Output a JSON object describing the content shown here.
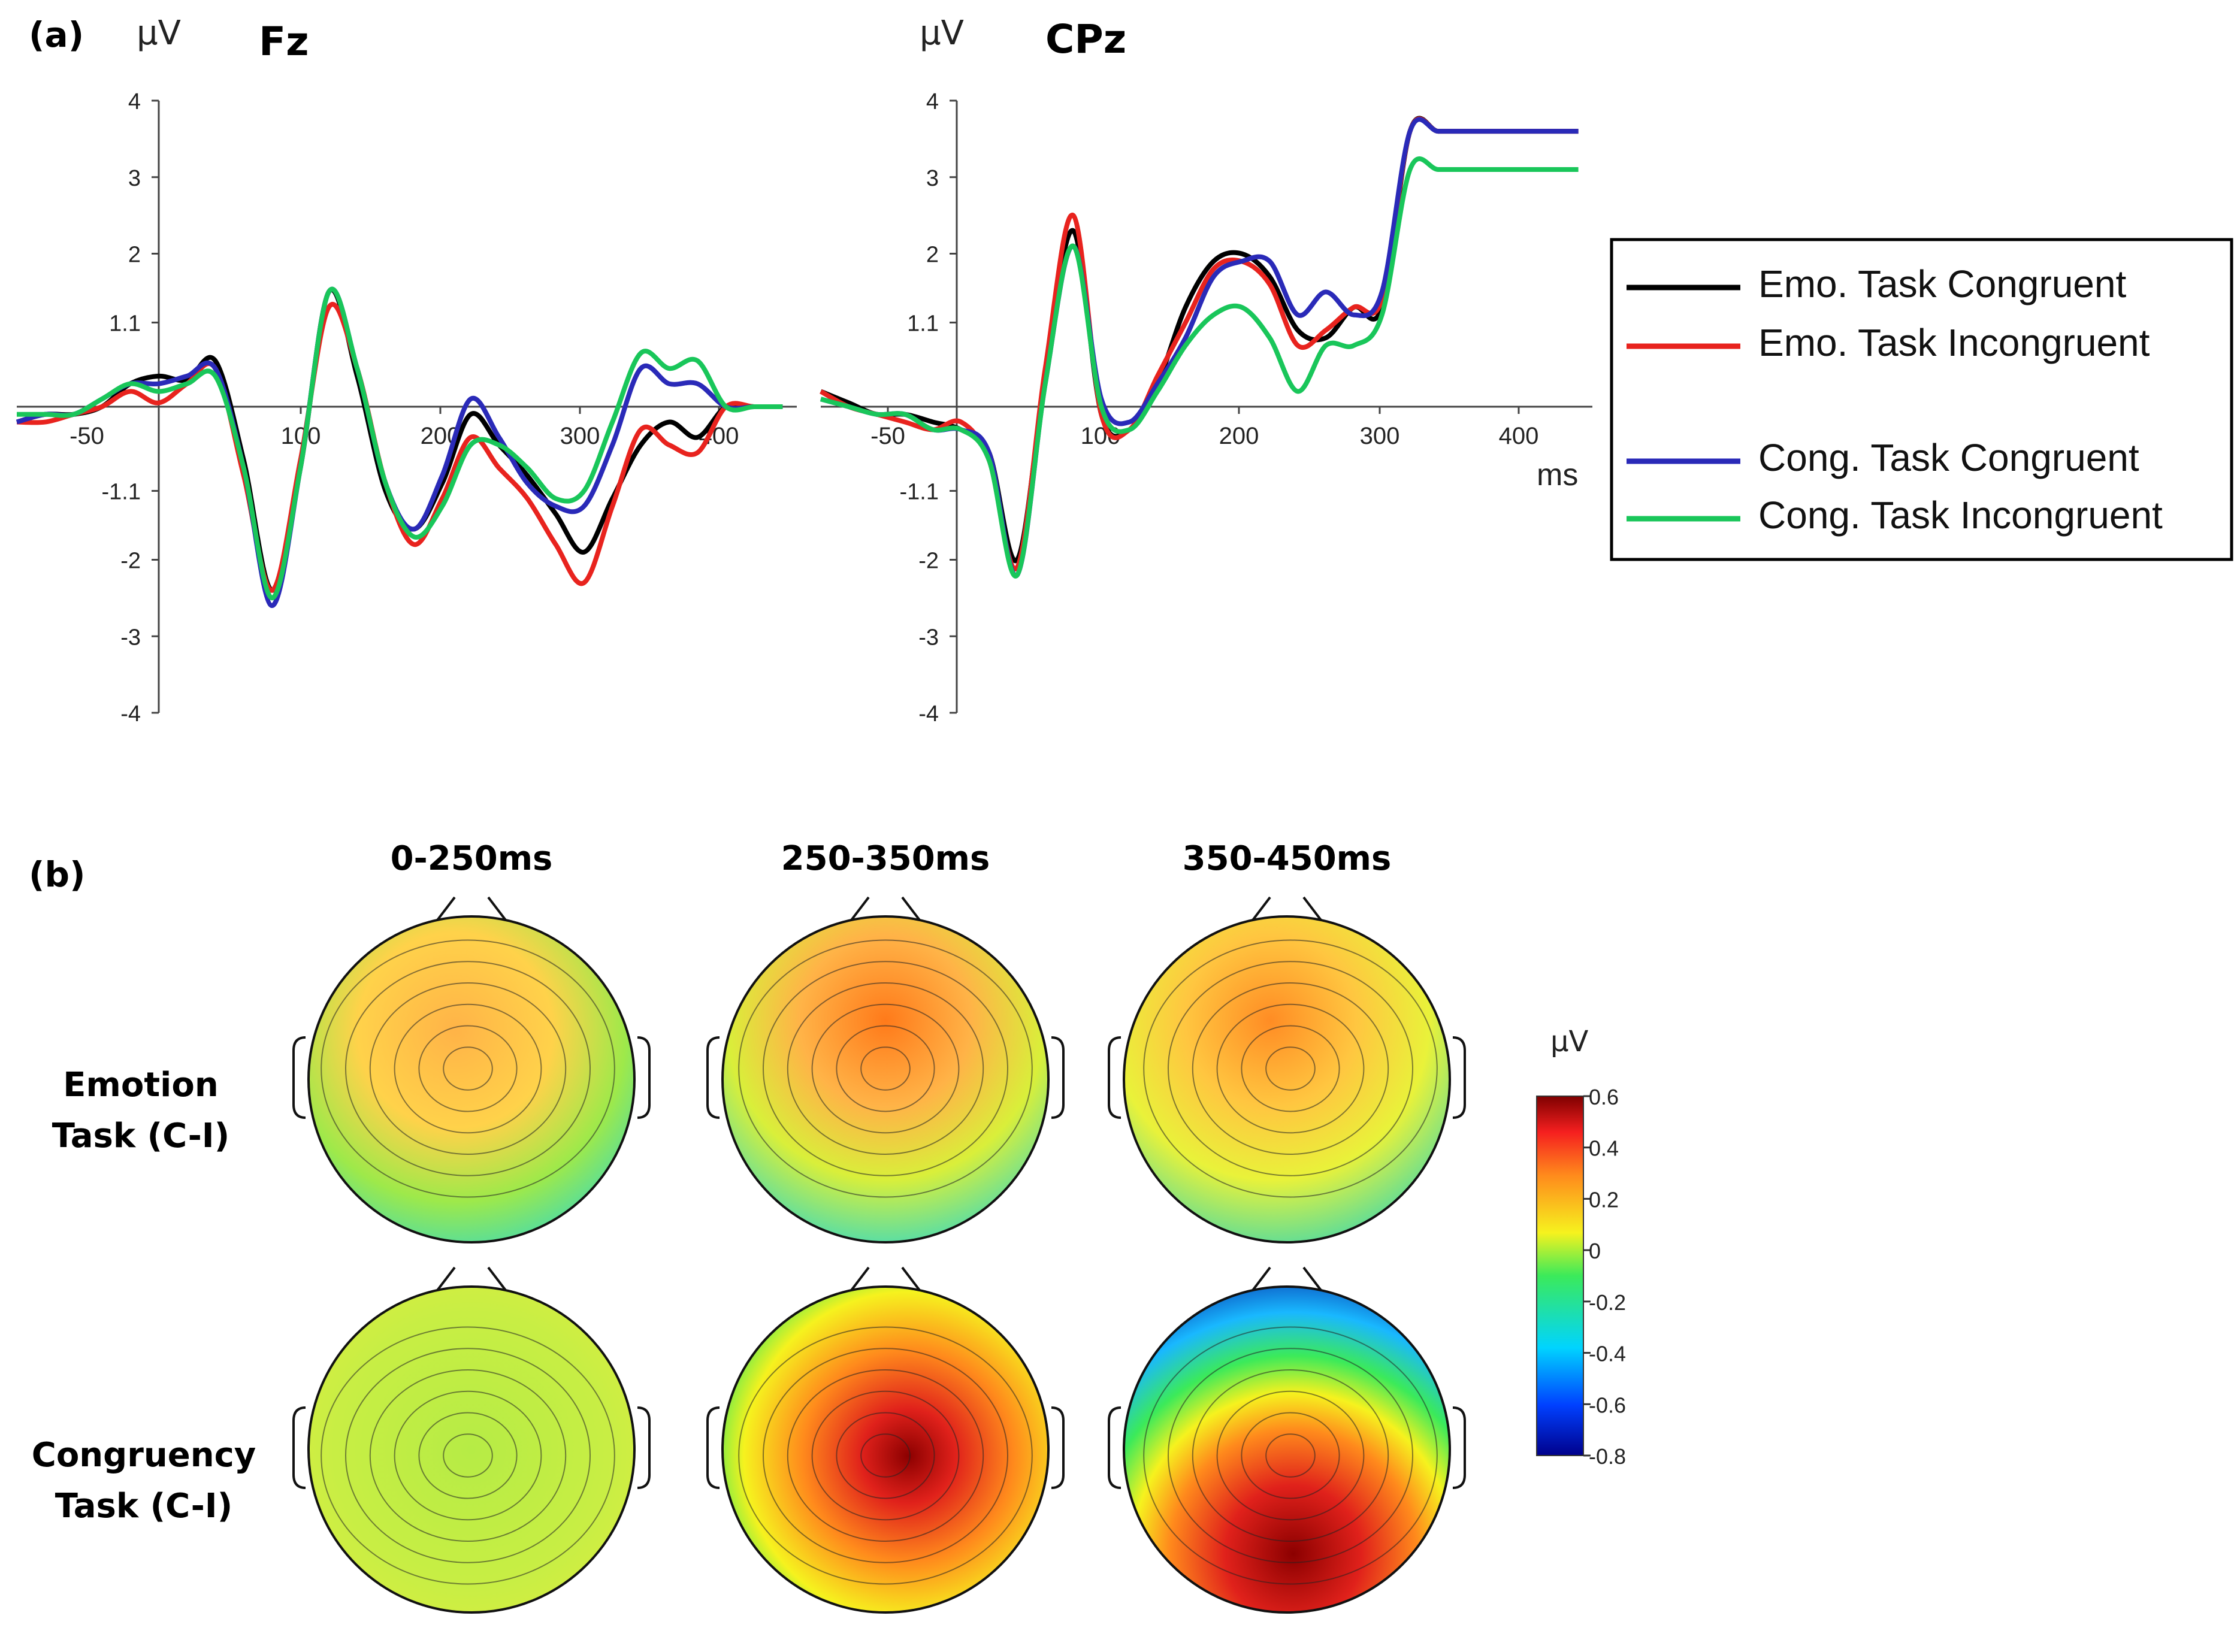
{
  "figure": {
    "panel_a_label": "(a)",
    "panel_b_label": "(b)"
  },
  "legend": {
    "entries": [
      {
        "label": "Emo. Task Congruent",
        "color": "#000000"
      },
      {
        "label": "Emo. Task Incongruent",
        "color": "#e8231e"
      },
      {
        "label": "Cong. Task Congruent",
        "color": "#2a2ab8"
      },
      {
        "label": "Cong. Task Incongruent",
        "color": "#19c65a"
      }
    ]
  },
  "chart_data": [
    {
      "type": "line",
      "title": "Fz",
      "ylabel": "μV",
      "xlabel": "",
      "xlim": [
        -100,
        450
      ],
      "ylim": [
        -4,
        4
      ],
      "x_ticks": [
        "-50",
        "100",
        "200",
        "300",
        "400"
      ],
      "y_ticks": [
        "4",
        "3",
        "2",
        "1.1",
        "-1.1",
        "-2",
        "-3",
        "-4"
      ],
      "x": [
        -100,
        -80,
        -60,
        -40,
        -20,
        0,
        20,
        40,
        60,
        80,
        100,
        120,
        140,
        160,
        180,
        200,
        220,
        240,
        260,
        280,
        300,
        320,
        340,
        360,
        380,
        400,
        420,
        440
      ],
      "series": [
        {
          "name": "Emo. Task Congruent",
          "color": "#000000",
          "values": [
            -0.2,
            -0.1,
            -0.1,
            0,
            0.3,
            0.4,
            0.35,
            0.6,
            -0.7,
            -2.4,
            -0.8,
            1.5,
            0.4,
            -1.1,
            -1.6,
            -1.0,
            -0.1,
            -0.5,
            -0.9,
            -1.4,
            -1.9,
            -1.2,
            -0.5,
            -0.2,
            -0.4,
            0,
            0,
            0
          ]
        },
        {
          "name": "Emo. Task Incongruent",
          "color": "#e8231e",
          "values": [
            -0.2,
            -0.2,
            -0.1,
            0,
            0.2,
            0.05,
            0.3,
            0.5,
            -0.9,
            -2.4,
            -0.7,
            1.3,
            0.5,
            -1.0,
            -1.8,
            -1.2,
            -0.4,
            -0.8,
            -1.2,
            -1.8,
            -2.3,
            -1.3,
            -0.3,
            -0.5,
            -0.6,
            0,
            0,
            0
          ]
        },
        {
          "name": "Cong. Task Congruent",
          "color": "#2a2ab8",
          "values": [
            -0.2,
            -0.1,
            -0.1,
            0.1,
            0.3,
            0.3,
            0.4,
            0.5,
            -0.8,
            -2.6,
            -0.8,
            1.5,
            0.5,
            -1.0,
            -1.6,
            -0.9,
            0.1,
            -0.4,
            -1.0,
            -1.3,
            -1.3,
            -0.5,
            0.5,
            0.3,
            0.3,
            0,
            0,
            0
          ]
        },
        {
          "name": "Cong. Task Incongruent",
          "color": "#19c65a",
          "values": [
            -0.1,
            -0.1,
            -0.1,
            0.1,
            0.3,
            0.2,
            0.3,
            0.4,
            -0.8,
            -2.5,
            -0.8,
            1.5,
            0.5,
            -1.0,
            -1.7,
            -1.3,
            -0.5,
            -0.5,
            -0.8,
            -1.2,
            -1.1,
            -0.2,
            0.7,
            0.5,
            0.6,
            0,
            0,
            0
          ]
        }
      ]
    },
    {
      "type": "line",
      "title": "CPz",
      "ylabel": "μV",
      "xlabel": "ms",
      "xlim": [
        -100,
        450
      ],
      "ylim": [
        -4,
        4
      ],
      "x_ticks": [
        "-50",
        "100",
        "200",
        "300",
        "400"
      ],
      "y_ticks": [
        "4",
        "3",
        "2",
        "1.1",
        "-1.1",
        "-2",
        "-3",
        "-4"
      ],
      "x": [
        -100,
        -80,
        -60,
        -40,
        -20,
        0,
        20,
        40,
        60,
        80,
        100,
        120,
        140,
        160,
        180,
        200,
        220,
        240,
        260,
        280,
        300,
        320,
        340,
        360,
        380,
        400,
        420,
        440
      ],
      "series": [
        {
          "name": "Emo. Task Congruent",
          "color": "#000000",
          "values": [
            0.2,
            0.05,
            -0.1,
            -0.1,
            -0.2,
            -0.3,
            -0.6,
            -2.0,
            0.4,
            2.3,
            -0.1,
            -0.3,
            0.3,
            1.3,
            1.9,
            2.0,
            1.7,
            1.0,
            0.9,
            1.3,
            1.3,
            3.6,
            3.6,
            3.6,
            3.6,
            3.6,
            3.6,
            3.6
          ]
        },
        {
          "name": "Emo. Task Incongruent",
          "color": "#e8231e",
          "values": [
            0.2,
            0.0,
            -0.1,
            -0.2,
            -0.3,
            -0.2,
            -0.7,
            -2.1,
            0.5,
            2.5,
            -0.1,
            -0.3,
            0.4,
            1.1,
            1.8,
            1.9,
            1.6,
            0.8,
            1.0,
            1.3,
            1.4,
            3.6,
            3.6,
            3.6,
            3.6,
            3.6,
            3.6,
            3.6
          ]
        },
        {
          "name": "Cong. Task Congruent",
          "color": "#2a2ab8",
          "values": [
            0.1,
            0.0,
            -0.1,
            -0.1,
            -0.3,
            -0.3,
            -0.6,
            -2.2,
            0.3,
            2.1,
            0.1,
            -0.2,
            0.3,
            0.9,
            1.7,
            1.9,
            1.9,
            1.2,
            1.5,
            1.2,
            1.5,
            3.6,
            3.6,
            3.6,
            3.6,
            3.6,
            3.6,
            3.6
          ]
        },
        {
          "name": "Cong. Task Incongruent",
          "color": "#19c65a",
          "values": [
            0.1,
            0.0,
            -0.1,
            -0.1,
            -0.3,
            -0.3,
            -0.7,
            -2.2,
            0.3,
            2.1,
            0.0,
            -0.3,
            0.2,
            0.8,
            1.2,
            1.3,
            0.9,
            0.2,
            0.8,
            0.8,
            1.2,
            3.1,
            3.1,
            3.1,
            3.1,
            3.1,
            3.1,
            3.1
          ]
        }
      ]
    }
  ],
  "topomaps": {
    "time_windows": [
      "0-250ms",
      "250-350ms",
      "350-450ms"
    ],
    "rows": [
      {
        "label_line1": "Emotion",
        "label_line2": "Task (C-I)"
      },
      {
        "label_line1": "Congruency",
        "label_line2": "Task (C-I)"
      }
    ]
  },
  "colorbar": {
    "unit": "μV",
    "min": -0.8,
    "max": 0.6,
    "tick_labels": [
      "0.6",
      "0.4",
      "0.2",
      "0",
      "-0.2",
      "-0.4",
      "-0.6",
      "-0.8"
    ]
  }
}
